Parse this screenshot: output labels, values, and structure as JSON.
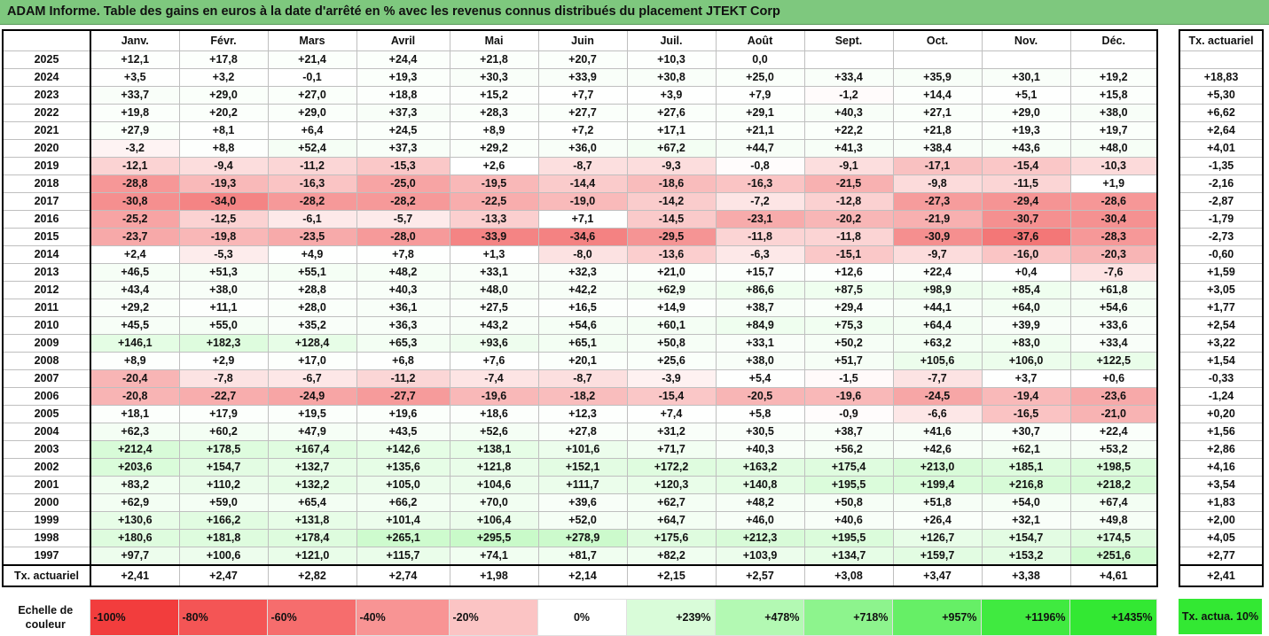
{
  "title": "ADAM Informe. Table des gains en euros à la date d'arrêté en % avec les revenus connus distribués du placement JTEKT Corp",
  "chart_data": {
    "type": "table",
    "months": [
      "Janv.",
      "Févr.",
      "Mars",
      "Avril",
      "Mai",
      "Juin",
      "Juil.",
      "Août",
      "Sept.",
      "Oct.",
      "Nov.",
      "Déc."
    ],
    "rate_header": "Tx. actuariel",
    "rows": [
      {
        "year": "2025",
        "values": [
          "+12,1",
          "+17,8",
          "+21,4",
          "+24,4",
          "+21,8",
          "+20,7",
          "+10,3",
          "0,0",
          "",
          "",
          "",
          ""
        ],
        "rate": ""
      },
      {
        "year": "2024",
        "values": [
          "+3,5",
          "+3,2",
          "-0,1",
          "+19,3",
          "+30,3",
          "+33,9",
          "+30,8",
          "+25,0",
          "+33,4",
          "+35,9",
          "+30,1",
          "+19,2"
        ],
        "rate": "+18,83"
      },
      {
        "year": "2023",
        "values": [
          "+33,7",
          "+29,0",
          "+27,0",
          "+18,8",
          "+15,2",
          "+7,7",
          "+3,9",
          "+7,9",
          "-1,2",
          "+14,4",
          "+5,1",
          "+15,8"
        ],
        "rate": "+5,30"
      },
      {
        "year": "2022",
        "values": [
          "+19,8",
          "+20,2",
          "+29,0",
          "+37,3",
          "+28,3",
          "+27,7",
          "+27,6",
          "+29,1",
          "+40,3",
          "+27,1",
          "+29,0",
          "+38,0"
        ],
        "rate": "+6,62"
      },
      {
        "year": "2021",
        "values": [
          "+27,9",
          "+8,1",
          "+6,4",
          "+24,5",
          "+8,9",
          "+7,2",
          "+17,1",
          "+21,1",
          "+22,2",
          "+21,8",
          "+19,3",
          "+19,7"
        ],
        "rate": "+2,64"
      },
      {
        "year": "2020",
        "values": [
          "-3,2",
          "+8,8",
          "+52,4",
          "+37,3",
          "+29,2",
          "+36,0",
          "+67,2",
          "+44,7",
          "+41,3",
          "+38,4",
          "+43,6",
          "+48,0"
        ],
        "rate": "+4,01"
      },
      {
        "year": "2019",
        "values": [
          "-12,1",
          "-9,4",
          "-11,2",
          "-15,3",
          "+2,6",
          "-8,7",
          "-9,3",
          "-0,8",
          "-9,1",
          "-17,1",
          "-15,4",
          "-10,3"
        ],
        "rate": "-1,35"
      },
      {
        "year": "2018",
        "values": [
          "-28,8",
          "-19,3",
          "-16,3",
          "-25,0",
          "-19,5",
          "-14,4",
          "-18,6",
          "-16,3",
          "-21,5",
          "-9,8",
          "-11,5",
          "+1,9"
        ],
        "rate": "-2,16"
      },
      {
        "year": "2017",
        "values": [
          "-30,8",
          "-34,0",
          "-28,2",
          "-28,2",
          "-22,5",
          "-19,0",
          "-14,2",
          "-7,2",
          "-12,8",
          "-27,3",
          "-29,4",
          "-28,6"
        ],
        "rate": "-2,87"
      },
      {
        "year": "2016",
        "values": [
          "-25,2",
          "-12,5",
          "-6,1",
          "-5,7",
          "-13,3",
          "+7,1",
          "-14,5",
          "-23,1",
          "-20,2",
          "-21,9",
          "-30,7",
          "-30,4"
        ],
        "rate": "-1,79"
      },
      {
        "year": "2015",
        "values": [
          "-23,7",
          "-19,8",
          "-23,5",
          "-28,0",
          "-33,9",
          "-34,6",
          "-29,5",
          "-11,8",
          "-11,8",
          "-30,9",
          "-37,6",
          "-28,3"
        ],
        "rate": "-2,73"
      },
      {
        "year": "2014",
        "values": [
          "+2,4",
          "-5,3",
          "+4,9",
          "+7,8",
          "+1,3",
          "-8,0",
          "-13,6",
          "-6,3",
          "-15,1",
          "-9,7",
          "-16,0",
          "-20,3"
        ],
        "rate": "-0,60"
      },
      {
        "year": "2013",
        "values": [
          "+46,5",
          "+51,3",
          "+55,1",
          "+48,2",
          "+33,1",
          "+32,3",
          "+21,0",
          "+15,7",
          "+12,6",
          "+22,4",
          "+0,4",
          "-7,6"
        ],
        "rate": "+1,59"
      },
      {
        "year": "2012",
        "values": [
          "+43,4",
          "+38,0",
          "+28,8",
          "+40,3",
          "+48,0",
          "+42,2",
          "+62,9",
          "+86,6",
          "+87,5",
          "+98,9",
          "+85,4",
          "+61,8"
        ],
        "rate": "+3,05"
      },
      {
        "year": "2011",
        "values": [
          "+29,2",
          "+11,1",
          "+28,0",
          "+36,1",
          "+27,5",
          "+16,5",
          "+14,9",
          "+38,7",
          "+29,4",
          "+44,1",
          "+64,0",
          "+54,6"
        ],
        "rate": "+1,77"
      },
      {
        "year": "2010",
        "values": [
          "+45,5",
          "+55,0",
          "+35,2",
          "+36,3",
          "+43,2",
          "+54,6",
          "+60,1",
          "+84,9",
          "+75,3",
          "+64,4",
          "+39,9",
          "+33,6"
        ],
        "rate": "+2,54"
      },
      {
        "year": "2009",
        "values": [
          "+146,1",
          "+182,3",
          "+128,4",
          "+65,3",
          "+93,6",
          "+65,1",
          "+50,8",
          "+33,1",
          "+50,2",
          "+63,2",
          "+83,0",
          "+33,4"
        ],
        "rate": "+3,22"
      },
      {
        "year": "2008",
        "values": [
          "+8,9",
          "+2,9",
          "+17,0",
          "+6,8",
          "+7,6",
          "+20,1",
          "+25,6",
          "+38,0",
          "+51,7",
          "+105,6",
          "+106,0",
          "+122,5"
        ],
        "rate": "+1,54"
      },
      {
        "year": "2007",
        "values": [
          "-20,4",
          "-7,8",
          "-6,7",
          "-11,2",
          "-7,4",
          "-8,7",
          "-3,9",
          "+5,4",
          "-1,5",
          "-7,7",
          "+3,7",
          "+0,6"
        ],
        "rate": "-0,33"
      },
      {
        "year": "2006",
        "values": [
          "-20,8",
          "-22,7",
          "-24,9",
          "-27,7",
          "-19,6",
          "-18,2",
          "-15,4",
          "-20,5",
          "-19,6",
          "-24,5",
          "-19,4",
          "-23,6"
        ],
        "rate": "-1,24"
      },
      {
        "year": "2005",
        "values": [
          "+18,1",
          "+17,9",
          "+19,5",
          "+19,6",
          "+18,6",
          "+12,3",
          "+7,4",
          "+5,8",
          "-0,9",
          "-6,6",
          "-16,5",
          "-21,0"
        ],
        "rate": "+0,20"
      },
      {
        "year": "2004",
        "values": [
          "+62,3",
          "+60,2",
          "+47,9",
          "+43,5",
          "+52,6",
          "+27,8",
          "+31,2",
          "+30,5",
          "+38,7",
          "+41,6",
          "+30,7",
          "+22,4"
        ],
        "rate": "+1,56"
      },
      {
        "year": "2003",
        "values": [
          "+212,4",
          "+178,5",
          "+167,4",
          "+142,6",
          "+138,1",
          "+101,6",
          "+71,7",
          "+40,3",
          "+56,2",
          "+42,6",
          "+62,1",
          "+53,2"
        ],
        "rate": "+2,86"
      },
      {
        "year": "2002",
        "values": [
          "+203,6",
          "+154,7",
          "+132,7",
          "+135,6",
          "+121,8",
          "+152,1",
          "+172,2",
          "+163,2",
          "+175,4",
          "+213,0",
          "+185,1",
          "+198,5"
        ],
        "rate": "+4,16"
      },
      {
        "year": "2001",
        "values": [
          "+83,2",
          "+110,2",
          "+132,2",
          "+105,0",
          "+104,6",
          "+111,7",
          "+120,3",
          "+140,8",
          "+195,5",
          "+199,4",
          "+216,8",
          "+218,2"
        ],
        "rate": "+3,54"
      },
      {
        "year": "2000",
        "values": [
          "+62,9",
          "+59,0",
          "+65,4",
          "+66,2",
          "+70,0",
          "+39,6",
          "+62,7",
          "+48,2",
          "+50,8",
          "+51,8",
          "+54,0",
          "+67,4"
        ],
        "rate": "+1,83"
      },
      {
        "year": "1999",
        "values": [
          "+130,6",
          "+166,2",
          "+131,8",
          "+101,4",
          "+106,4",
          "+52,0",
          "+64,7",
          "+46,0",
          "+40,6",
          "+26,4",
          "+32,1",
          "+49,8"
        ],
        "rate": "+2,00"
      },
      {
        "year": "1998",
        "values": [
          "+180,6",
          "+181,8",
          "+178,4",
          "+265,1",
          "+295,5",
          "+278,9",
          "+175,6",
          "+212,3",
          "+195,5",
          "+126,7",
          "+154,7",
          "+174,5"
        ],
        "rate": "+4,05"
      },
      {
        "year": "1997",
        "values": [
          "+97,7",
          "+100,6",
          "+121,0",
          "+115,7",
          "+74,1",
          "+81,7",
          "+82,2",
          "+103,9",
          "+134,7",
          "+159,7",
          "+153,2",
          "+251,6"
        ],
        "rate": "+2,77"
      }
    ],
    "footer": {
      "label": "Tx. actuariel",
      "values": [
        "+2,41",
        "+2,47",
        "+2,82",
        "+2,74",
        "+1,98",
        "+2,14",
        "+2,15",
        "+2,57",
        "+3,08",
        "+3,47",
        "+3,38",
        "+4,61"
      ],
      "rate": "+2,41"
    },
    "legend": {
      "label": "Echelle de couleur",
      "steps": [
        "-100%",
        "-80%",
        "-60%",
        "-40%",
        "-20%",
        "0%",
        "+239%",
        "+478%",
        "+718%",
        "+957%",
        "+1196%",
        "+1435%"
      ],
      "colors": [
        "#f23d3d",
        "#f45555",
        "#f66d6d",
        "#f89494",
        "#fbc4c4",
        "#ffffff",
        "#d9fcd9",
        "#b3f9b3",
        "#8df48d",
        "#66ef66",
        "#40ea40",
        "#33e833"
      ],
      "rate_label": "Tx. actua. 10%",
      "rate_color": "#33e833"
    }
  }
}
